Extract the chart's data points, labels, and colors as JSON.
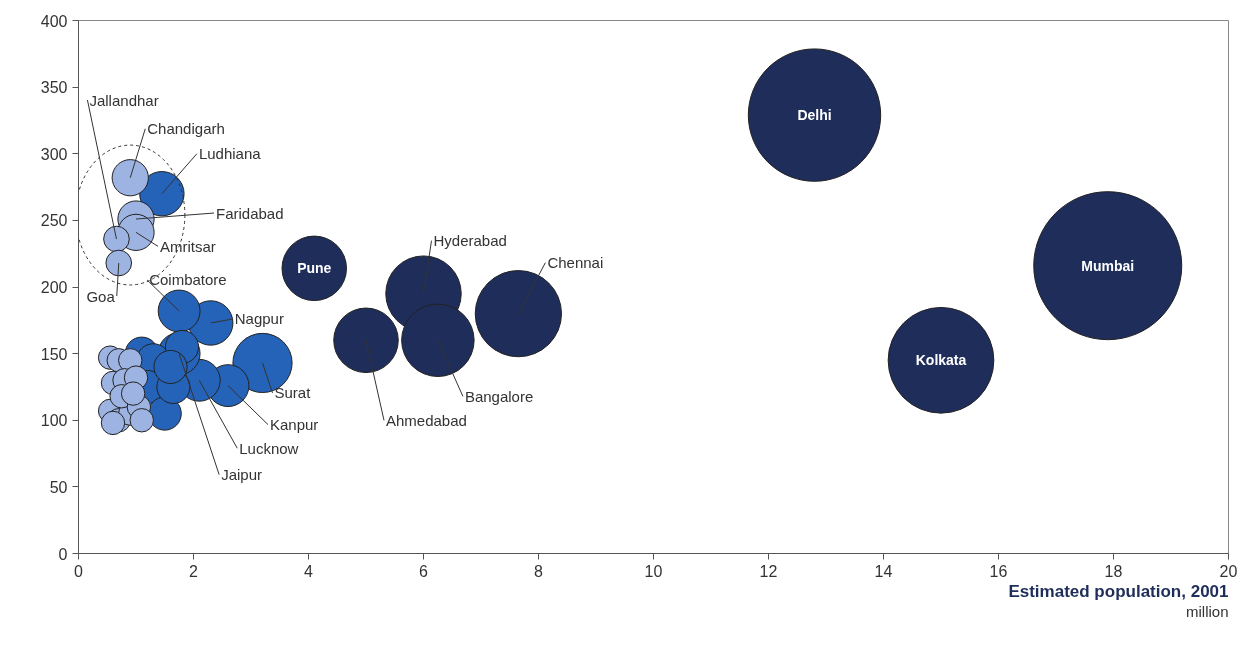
{
  "chart_data": {
    "type": "bubble",
    "xlabel": "Estimated population, 2001",
    "xlim": [
      0,
      20
    ],
    "xticks": [
      0,
      2,
      4,
      6,
      8,
      10,
      12,
      14,
      16,
      18,
      20
    ],
    "ylim": [
      0,
      400
    ],
    "yticks": [
      0,
      50,
      100,
      150,
      200,
      250,
      300,
      350,
      400
    ],
    "grid": false,
    "series": [
      {
        "color": "#2563b8",
        "x": [
          3.2,
          2.3,
          1.75,
          2.6,
          2.1,
          1.75,
          1.45,
          1.1,
          1.3,
          1.2,
          1.5,
          1.65,
          1.8,
          1.6
        ],
        "values": [
          143,
          173,
          182,
          126,
          130,
          150,
          270,
          150,
          145,
          125,
          105,
          125,
          155,
          140
        ],
        "sizes": [
          0.16,
          0.09,
          0.08,
          0.08,
          0.08,
          0.08,
          0.09,
          0.05,
          0.05,
          0.05,
          0.05,
          0.05,
          0.05,
          0.05
        ]
      },
      {
        "color": "#9db3e2",
        "x": [
          0.9,
          1.0,
          1.0,
          0.66,
          0.7,
          0.55,
          0.7,
          0.9,
          0.6,
          0.8,
          1.0,
          0.55,
          0.7,
          0.9,
          0.75,
          1.05,
          0.6,
          0.95,
          1.1
        ],
        "values": [
          282,
          251,
          241,
          236,
          218,
          147,
          145,
          145,
          128,
          130,
          132,
          107,
          100,
          105,
          118,
          110,
          98,
          120,
          100
        ],
        "sizes": [
          0.06,
          0.06,
          0.06,
          0.03,
          0.03,
          0.025,
          0.025,
          0.025,
          0.025,
          0.025,
          0.025,
          0.025,
          0.025,
          0.025,
          0.025,
          0.025,
          0.025,
          0.025,
          0.025
        ]
      },
      {
        "color": "#1f2d5a",
        "x": [
          12.8,
          17.9,
          15.0,
          7.65,
          6.0,
          6.25,
          5.0,
          4.1
        ],
        "values": [
          329,
          216,
          145,
          180,
          195,
          160,
          160,
          214
        ],
        "sizes": [
          0.8,
          1,
          0.51,
          0.34,
          0.26,
          0.24,
          0.19,
          0.19
        ]
      }
    ],
    "annotations": [
      {
        "text": "Delhi",
        "x": 12.8,
        "y": 329
      },
      {
        "text": "Mumbai",
        "x": 17.9,
        "y": 216
      },
      {
        "text": "Kolkata",
        "x": 15.0,
        "y": 145
      },
      {
        "text": "Pune",
        "x": 4.1,
        "y": 214
      },
      {
        "text": "Hyderabad",
        "x": 6.0,
        "y": 195
      },
      {
        "text": "Chennai",
        "x": 7.65,
        "y": 180
      },
      {
        "text": "Bangalore",
        "x": 6.25,
        "y": 160
      },
      {
        "text": "Ahmedabad",
        "x": 5.0,
        "y": 160
      },
      {
        "text": "Surat",
        "x": 3.2,
        "y": 143
      },
      {
        "text": "Kanpur",
        "x": 2.6,
        "y": 126
      },
      {
        "text": "Lucknow",
        "x": 2.1,
        "y": 130
      },
      {
        "text": "Jaipur",
        "x": 1.75,
        "y": 150
      },
      {
        "text": "Nagpur",
        "x": 2.3,
        "y": 173
      },
      {
        "text": "Coimbatore",
        "x": 1.75,
        "y": 182
      },
      {
        "text": "Ludhiana",
        "x": 1.45,
        "y": 270
      },
      {
        "text": "Chandigarh",
        "x": 0.9,
        "y": 282
      },
      {
        "text": "Faridabad",
        "x": 1.0,
        "y": 251
      },
      {
        "text": "Amritsar",
        "x": 1.0,
        "y": 241
      },
      {
        "text": "Jallandhar",
        "x": 0.66,
        "y": 236
      },
      {
        "text": "Goa",
        "x": 0.7,
        "y": 218
      },
      "million"
    ]
  }
}
